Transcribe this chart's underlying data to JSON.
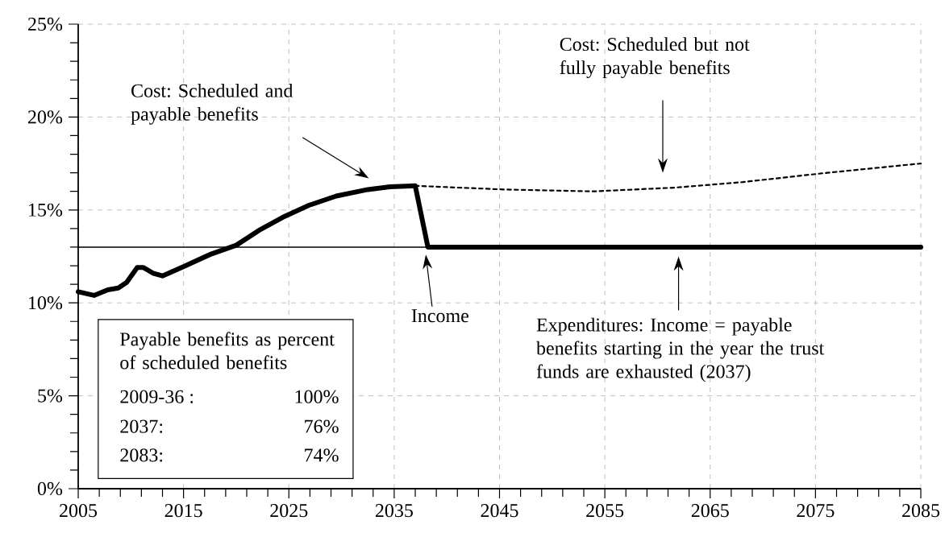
{
  "chart_data": {
    "type": "line",
    "x": [
      2005,
      2006.5,
      2007.8,
      2008.8,
      2009.6,
      2010.6,
      2011.2,
      2012.1,
      2013,
      2015.2,
      2017.5,
      2020,
      2022.3,
      2024.4,
      2026.9,
      2029.5,
      2032.5,
      2034.6,
      2037,
      2038.2,
      2085
    ],
    "series": [
      {
        "color": "#000000",
        "line_style": "solid",
        "values": [
          10.6,
          10.4,
          10.7,
          10.8,
          11.1,
          11.9,
          11.9,
          11.6,
          11.45,
          12.0,
          12.6,
          13.1,
          13.95,
          14.6,
          15.25,
          15.75,
          16.1,
          16.25,
          16.3,
          13.0,
          13.0
        ]
      },
      {
        "color": "#000000",
        "line_style": "dotted",
        "x": [
          2037,
          2045.5,
          2053.9,
          2061.6,
          2068.1,
          2076.1,
          2085
        ],
        "values": [
          16.3,
          16.1,
          16.0,
          16.2,
          16.5,
          17.0,
          17.5
        ]
      },
      {
        "color": "#000000",
        "line_style": "solid",
        "x": [
          2005,
          2085
        ],
        "values": [
          13.0,
          13.0
        ]
      }
    ],
    "xlim": [
      2005,
      2085
    ],
    "xticks": [
      2005,
      {
        "value": 2007,
        "label": null
      },
      {
        "value": 2009,
        "label": null
      },
      {
        "value": 2011,
        "label": null
      },
      {
        "value": 2013,
        "label": null
      },
      2015,
      {
        "value": 2017,
        "label": null
      },
      {
        "value": 2019,
        "label": null
      },
      {
        "value": 2021,
        "label": null
      },
      {
        "value": 2023,
        "label": null
      },
      2025,
      {
        "value": 2027,
        "label": null
      },
      {
        "value": 2029,
        "label": null
      },
      {
        "value": 2031,
        "label": null
      },
      {
        "value": 2033,
        "label": null
      },
      2035,
      {
        "value": 2037,
        "label": null
      },
      {
        "value": 2039,
        "label": null
      },
      {
        "value": 2041,
        "label": null
      },
      {
        "value": 2043,
        "label": null
      },
      2045,
      {
        "value": 2047,
        "label": null
      },
      {
        "value": 2049,
        "label": null
      },
      {
        "value": 2051,
        "label": null
      },
      {
        "value": 2053,
        "label": null
      },
      2055,
      {
        "value": 2057,
        "label": null
      },
      {
        "value": 2059,
        "label": null
      },
      {
        "value": 2061,
        "label": null
      },
      {
        "value": 2063,
        "label": null
      },
      2065,
      {
        "value": 2067,
        "label": null
      },
      {
        "value": 2069,
        "label": null
      },
      {
        "value": 2071,
        "label": null
      },
      {
        "value": 2073,
        "label": null
      },
      2075,
      {
        "value": 2077,
        "label": null
      },
      {
        "value": 2079,
        "label": null
      },
      {
        "value": 2081,
        "label": null
      },
      {
        "value": 2083,
        "label": null
      },
      2085
    ],
    "ylim": [
      0,
      25
    ],
    "yticks": [
      {
        "value": 0,
        "label": "0%"
      },
      {
        "value": 1,
        "label": null
      },
      {
        "value": 2,
        "label": null
      },
      {
        "value": 3,
        "label": null
      },
      {
        "value": 4,
        "label": null
      },
      {
        "value": 5,
        "label": "5%"
      },
      {
        "value": 6,
        "label": null
      },
      {
        "value": 7,
        "label": null
      },
      {
        "value": 8,
        "label": null
      },
      {
        "value": 9,
        "label": null
      },
      {
        "value": 10,
        "label": "10%"
      },
      {
        "value": 11,
        "label": null
      },
      {
        "value": 12,
        "label": null
      },
      {
        "value": 13,
        "label": null
      },
      {
        "value": 14,
        "label": null
      },
      {
        "value": 15,
        "label": "15%"
      },
      {
        "value": 16,
        "label": null
      },
      {
        "value": 17,
        "label": null
      },
      {
        "value": 18,
        "label": null
      },
      {
        "value": 19,
        "label": null
      },
      {
        "value": 20,
        "label": "20%"
      },
      {
        "value": 21,
        "label": null
      },
      {
        "value": 22,
        "label": null
      },
      {
        "value": 23,
        "label": null
      },
      {
        "value": 24,
        "label": null
      },
      {
        "value": 25,
        "label": "25%"
      }
    ],
    "grid": true,
    "annotations": [
      "Cost: Scheduled and payable benefits",
      "Cost: Scheduled but not fully payable benefits",
      "Income",
      "Expenditures: Income = payable benefits starting in the year the trust funds are exhausted (2037)",
      "Payable benefits as percent of scheduled benefits",
      "2009-36 :",
      "100%",
      "2037:",
      "76%",
      "2083:",
      "74%"
    ]
  }
}
